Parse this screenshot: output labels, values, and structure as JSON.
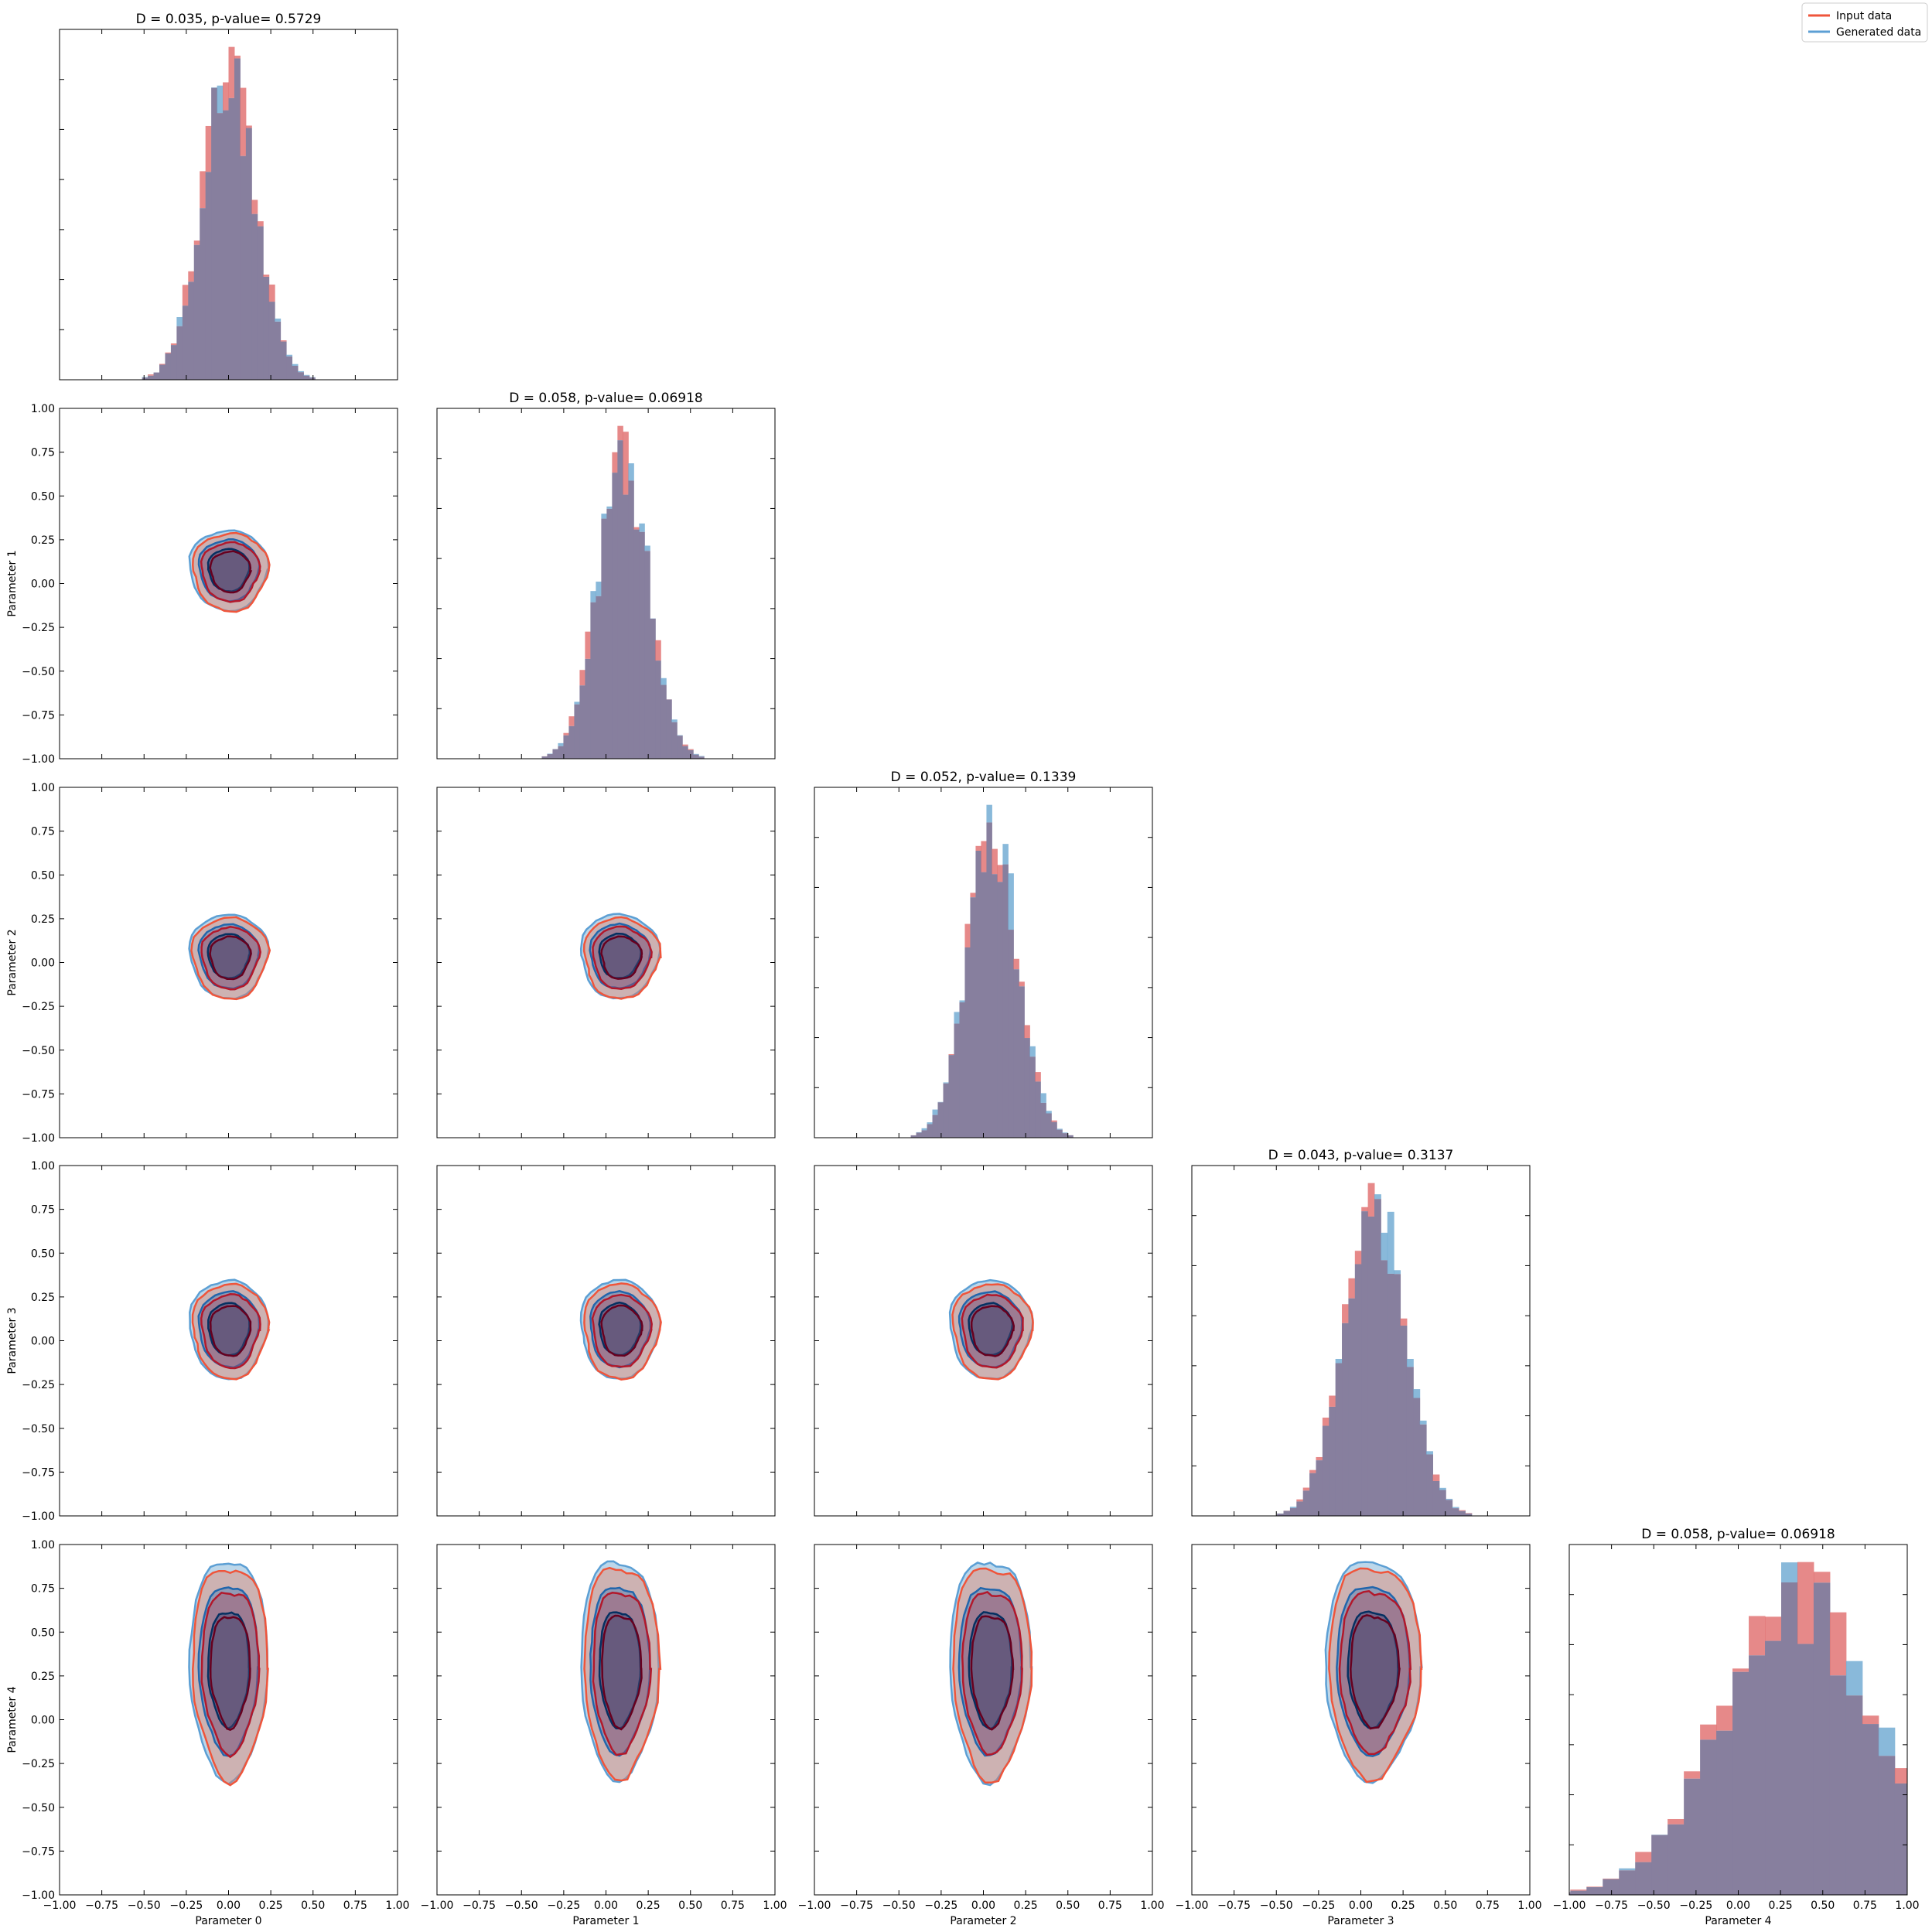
{
  "chart_data": {
    "type": "corner",
    "parameters": [
      "Parameter 0",
      "Parameter 1",
      "Parameter 2",
      "Parameter 3",
      "Parameter 4"
    ],
    "xlim": [
      -1.0,
      1.0
    ],
    "ylim": [
      -1.0,
      1.0
    ],
    "tick_labels": [
      "−1.00",
      "−0.75",
      "−0.50",
      "−0.25",
      "0.00",
      "0.25",
      "0.50",
      "0.75",
      "1.00"
    ],
    "tick_values": [
      -1.0,
      -0.75,
      -0.5,
      -0.25,
      0.0,
      0.25,
      0.5,
      0.75,
      1.0
    ],
    "legend": {
      "placement": "top-right",
      "entries": [
        {
          "label": "Input data",
          "color": "#ef553b"
        },
        {
          "label": "Generated data",
          "color": "#5c9fd4"
        }
      ]
    },
    "colors": {
      "input_hist": "#e06c6c",
      "generated_hist": "#6ba7d1",
      "overlap": "#877f9e",
      "input_contour": [
        "#f4a582",
        "#ef553b",
        "#b2182b",
        "#67001f"
      ],
      "generated_contour": [
        "#a6cee3",
        "#5c9fd4",
        "#2166ac",
        "#053061"
      ]
    },
    "diagonal": [
      {
        "title": "D = 0.035, p-value= 0.5729",
        "center": 0.0,
        "sigma": 0.16,
        "scale": 1.0
      },
      {
        "title": "D = 0.058, p-value= 0.06918",
        "center": 0.1,
        "sigma": 0.15,
        "scale": 1.0
      },
      {
        "title": "D = 0.052, p-value= 0.1339",
        "center": 0.05,
        "sigma": 0.15,
        "scale": 1.0
      },
      {
        "title": "D = 0.043, p-value= 0.3137",
        "center": 0.08,
        "sigma": 0.18,
        "scale": 1.0
      },
      {
        "title": "D = 0.058, p-value= 0.06918",
        "center": 0.35,
        "sigma": 0.45,
        "scale": 1.0
      }
    ]
  }
}
